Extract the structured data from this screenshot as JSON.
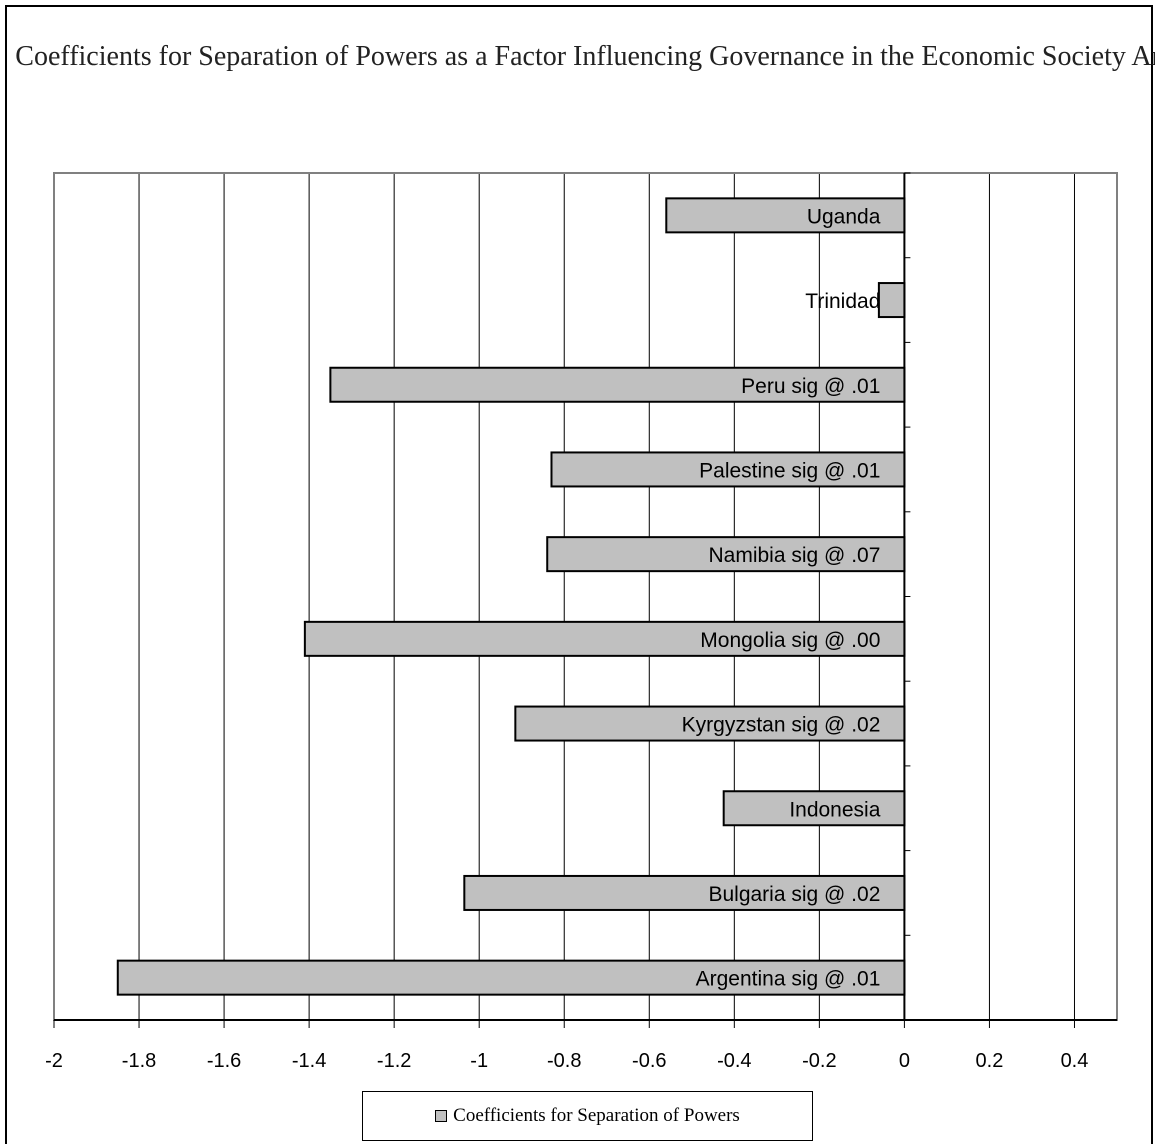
{
  "chart_data": {
    "type": "bar",
    "orientation": "horizontal",
    "title": "Coefficients for Separation of Powers as a Factor Influencing Governance in the Economic Society Arena",
    "categories": [
      "Uganda",
      "Trinidad",
      "Peru  sig @ .01",
      "Palestine sig @ .01",
      "Namibia sig @ .07",
      "Mongolia  sig @ .00",
      "Kyrgyzstan sig @ .02",
      "Indonesia",
      "Bulgaria  sig @ .02",
      "Argentina sig @ .01"
    ],
    "series": [
      {
        "name": "Coefficients for Separation of Powers",
        "values": [
          -0.56,
          -0.06,
          -1.35,
          -0.83,
          -0.84,
          -1.41,
          -0.915,
          -0.425,
          -1.035,
          -1.85
        ],
        "color": "#c0c0c0"
      }
    ],
    "xlim": [
      -2,
      0.5
    ],
    "xticks": [
      -2,
      -1.8,
      -1.6,
      -1.4,
      -1.2,
      -1,
      -0.8,
      -0.6,
      -0.4,
      -0.2,
      0,
      0.2,
      0.4
    ],
    "xtick_labels": [
      "-2",
      "-1.8",
      "-1.6",
      "-1.4",
      "-1.2",
      "-1",
      "-0.8",
      "-0.6",
      "-0.4",
      "-0.2",
      "0",
      "0.2",
      "0.4"
    ],
    "grid": "vertical",
    "legend": "bottom"
  }
}
